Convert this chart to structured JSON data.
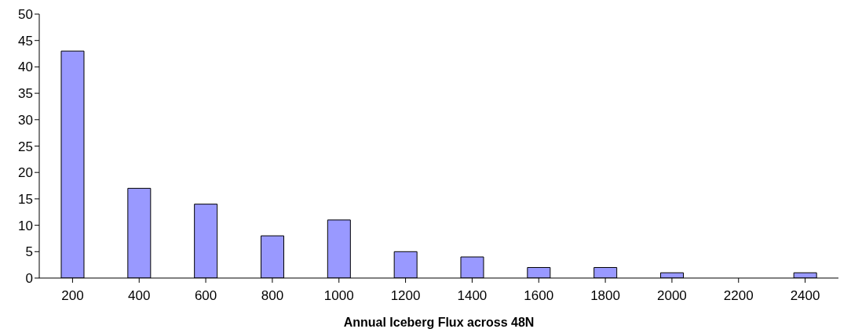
{
  "chart_data": {
    "type": "bar",
    "xlabel": "Annual Iceberg Flux across 48N",
    "categories": [
      "200",
      "400",
      "600",
      "800",
      "1000",
      "1200",
      "1400",
      "1600",
      "1800",
      "2000",
      "2200",
      "2400"
    ],
    "values": [
      43,
      17,
      14,
      8,
      11,
      5,
      4,
      2,
      2,
      1,
      0,
      1
    ],
    "color": "#9999ff",
    "ylim": [
      0,
      50
    ],
    "yticks": [
      0,
      5,
      10,
      15,
      20,
      25,
      30,
      35,
      40,
      45,
      50
    ],
    "grid": false,
    "legend": false
  }
}
